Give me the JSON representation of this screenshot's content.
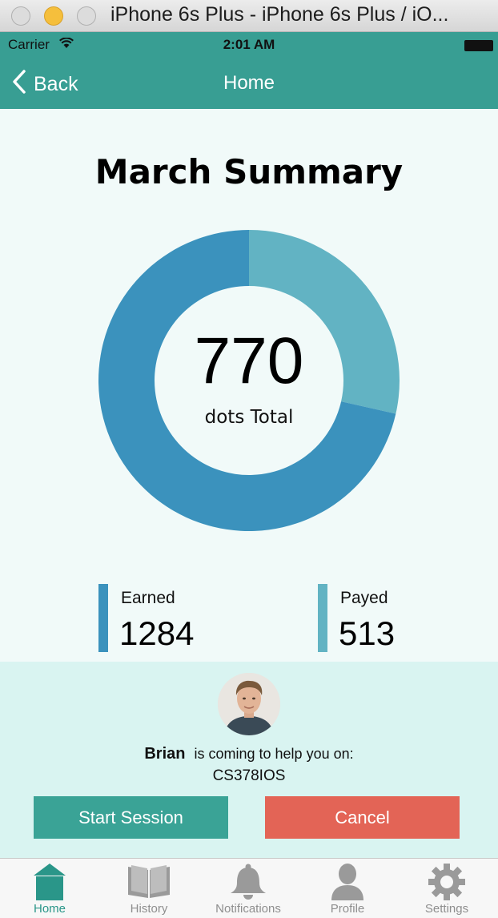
{
  "window": {
    "title": "iPhone 6s Plus - iPhone 6s Plus / iO..."
  },
  "status": {
    "carrier": "Carrier",
    "time": "2:01 AM"
  },
  "nav": {
    "back_label": "Back",
    "title": "Home"
  },
  "summary": {
    "title": "March Summary",
    "total_value": "770",
    "total_label": "dots Total",
    "earned_label": "Earned",
    "earned_value": "1284",
    "payed_label": "Payed",
    "payed_value": "513"
  },
  "chart_data": {
    "type": "pie",
    "donut": true,
    "title": "",
    "series": [
      {
        "name": "",
        "value": 1284,
        "color": "#3b92bd"
      },
      {
        "name": "",
        "value": 513,
        "color": "#62b3c3"
      }
    ]
  },
  "helper": {
    "name": "Brian",
    "message": "is coming to help you on:",
    "course": "CS378IOS"
  },
  "actions": {
    "start_label": "Start Session",
    "cancel_label": "Cancel"
  },
  "tabs": [
    {
      "label": "Home",
      "icon": "home-icon",
      "active": true
    },
    {
      "label": "History",
      "icon": "book-icon",
      "active": false
    },
    {
      "label": "Notifications",
      "icon": "bell-icon",
      "active": false
    },
    {
      "label": "Profile",
      "icon": "person-icon",
      "active": false
    },
    {
      "label": "Settings",
      "icon": "gear-icon",
      "active": false
    }
  ],
  "colors": {
    "primary": "#389e93",
    "earned": "#3b92bd",
    "payed": "#62b3c3",
    "start": "#3aa396",
    "cancel": "#e36456",
    "active_tab": "#2a9689"
  }
}
